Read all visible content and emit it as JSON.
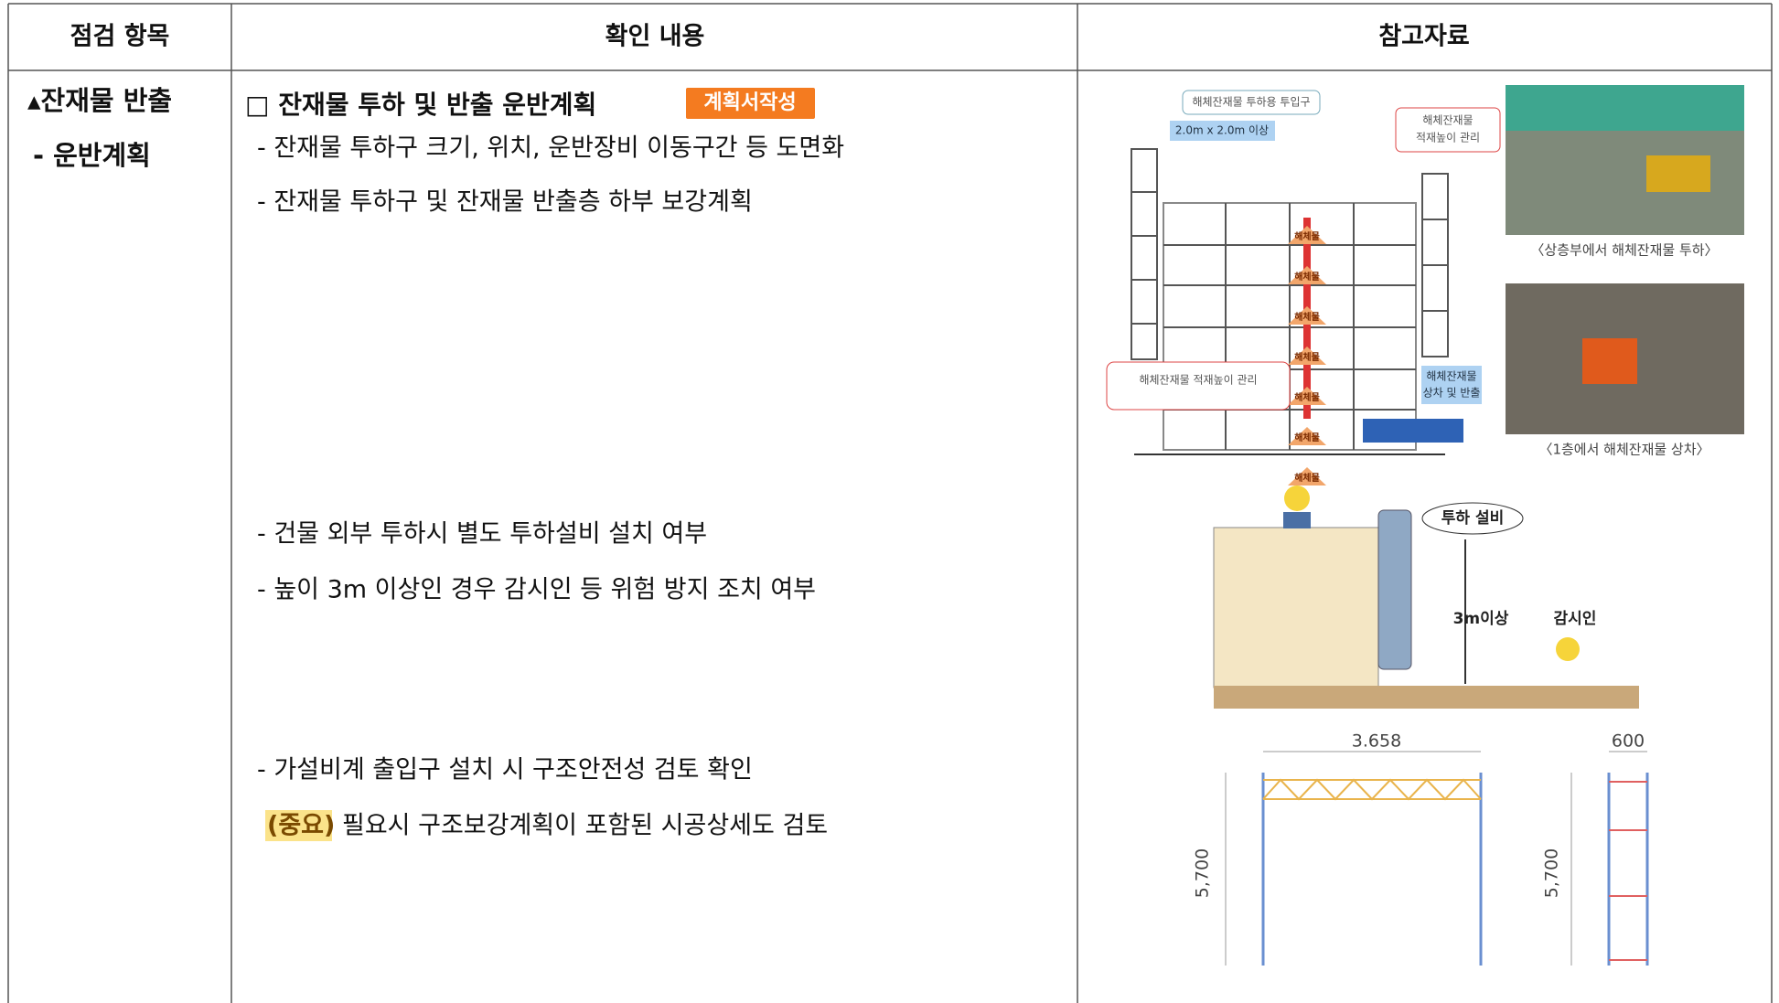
{
  "table": {
    "headers": [
      "점검 항목",
      "확인 내용",
      "참고자료"
    ],
    "item": {
      "title": "▴잔재물 반출",
      "sub": "- 운반계획"
    },
    "content": {
      "heading": "□ 잔재물 투하 및 반출 운반계획",
      "badge": "계획서작성",
      "lines": [
        "- 잔재물 투하구 크기, 위치, 운반장비 이동구간 등 도면화",
        "- 잔재물 투하구 및 잔재물 반출층 하부 보강계획",
        "- 건물 외부 투하시 별도 투하설비 설치 여부",
        "- 높이 3m 이상인 경우 감시인 등 위험 방지 조치 여부",
        "- 가설비계 출입구 설치 시 구조안전성 검토 확인"
      ],
      "note": {
        "label": "(중요)",
        "text": "필요시 구조보강계획이 포함된 시공상세도 검토"
      }
    },
    "reference": {
      "figure1": {
        "inlet": "해체잔재물 투하용 투입구",
        "size": "2.0m x 2.0m 이상",
        "height_top": [
          "해체잔재물",
          "적재높이 관리"
        ],
        "height_bottom": "해체잔재물 적재높이 관리",
        "loading": [
          "해체잔재물",
          "상차 및 반출"
        ],
        "debris": [
          "해체물",
          "해체물",
          "해체물",
          "해체물",
          "해체물",
          "해체물",
          "해체물"
        ]
      },
      "photo_captions": [
        "〈상층부에서 해체잔재물 투하〉",
        "〈1층에서 해체잔재물 상차〉"
      ],
      "figure2": {
        "bubble": "투하 설비",
        "height": "3m이상",
        "watcher": "감시인"
      },
      "figure3": {
        "width_a": "3.658",
        "width_b": "600",
        "height_a": "5,700",
        "height_b": "5,700"
      }
    }
  }
}
